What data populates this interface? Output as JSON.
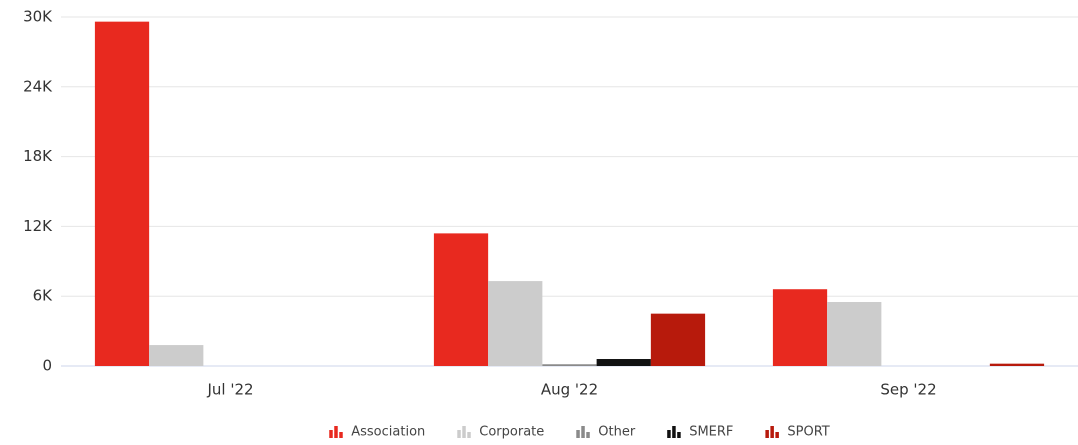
{
  "chart_data": {
    "type": "bar",
    "categories": [
      "Jul '22",
      "Aug '22",
      "Sep '22"
    ],
    "series": [
      {
        "name": "Association",
        "color": "#e8291f",
        "values": [
          29600,
          11400,
          6600
        ]
      },
      {
        "name": "Corporate",
        "color": "#cccccc",
        "values": [
          1800,
          7300,
          5500
        ]
      },
      {
        "name": "Other",
        "color": "#8a8a8a",
        "values": [
          0,
          150,
          0
        ]
      },
      {
        "name": "SMERF",
        "color": "#111111",
        "values": [
          0,
          600,
          0
        ]
      },
      {
        "name": "SPORT",
        "color": "#b71a0c",
        "values": [
          0,
          4500,
          200
        ]
      }
    ],
    "ylim": [
      0,
      30000
    ],
    "yticks": [
      0,
      {
        "value": 6000,
        "label": "6K"
      },
      {
        "value": 12000,
        "label": "12K"
      },
      {
        "value": 18000,
        "label": "18K"
      },
      {
        "value": 24000,
        "label": "24K"
      },
      {
        "value": 30000,
        "label": "30K"
      }
    ],
    "grid": true,
    "legend": "bottom"
  }
}
